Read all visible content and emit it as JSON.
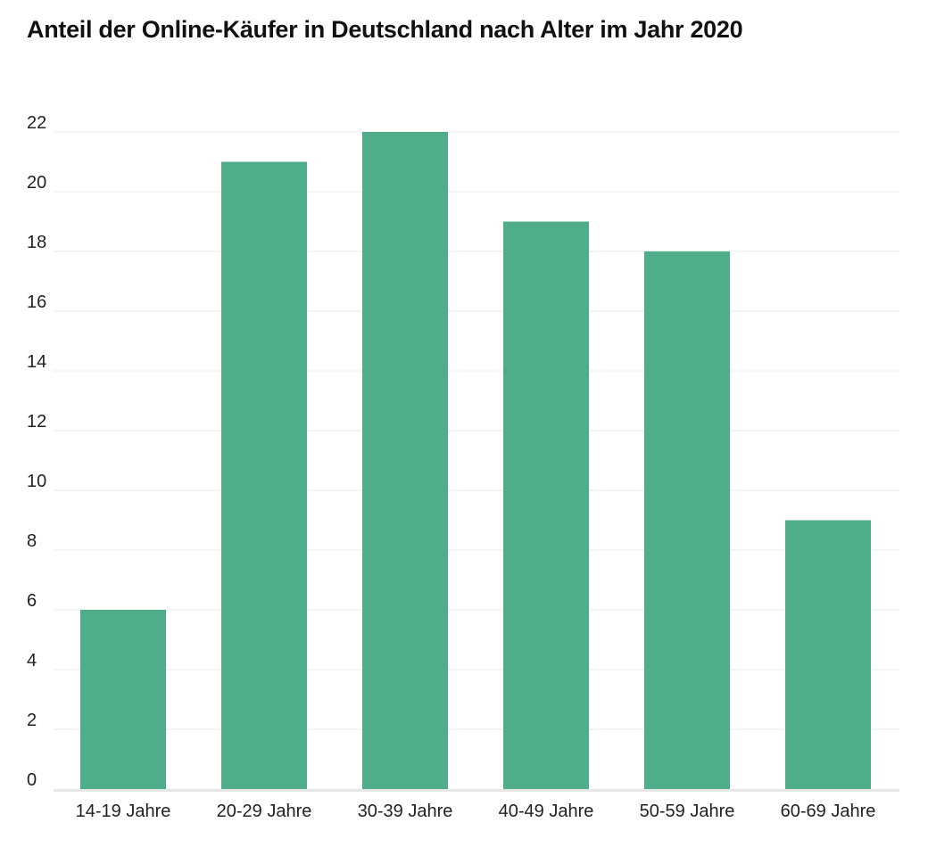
{
  "chart_data": {
    "type": "bar",
    "title": "Anteil der Online-Käufer in Deutschland nach Alter im Jahr 2020",
    "xlabel": "",
    "ylabel": "",
    "categories": [
      "14-19 Jahre",
      "20-29 Jahre",
      "30-39 Jahre",
      "40-49 Jahre",
      "50-59 Jahre",
      "60-69 Jahre"
    ],
    "values": [
      6,
      21,
      22,
      19,
      18,
      9
    ],
    "ylim": [
      0,
      22
    ],
    "yticks": [
      0,
      2,
      4,
      6,
      8,
      10,
      12,
      14,
      16,
      18,
      20,
      22
    ],
    "grid": true,
    "legend": "none",
    "bar_color": "#4fad8a",
    "grid_color": "#f0f0f0",
    "axis_color": "#e6e6e6"
  }
}
